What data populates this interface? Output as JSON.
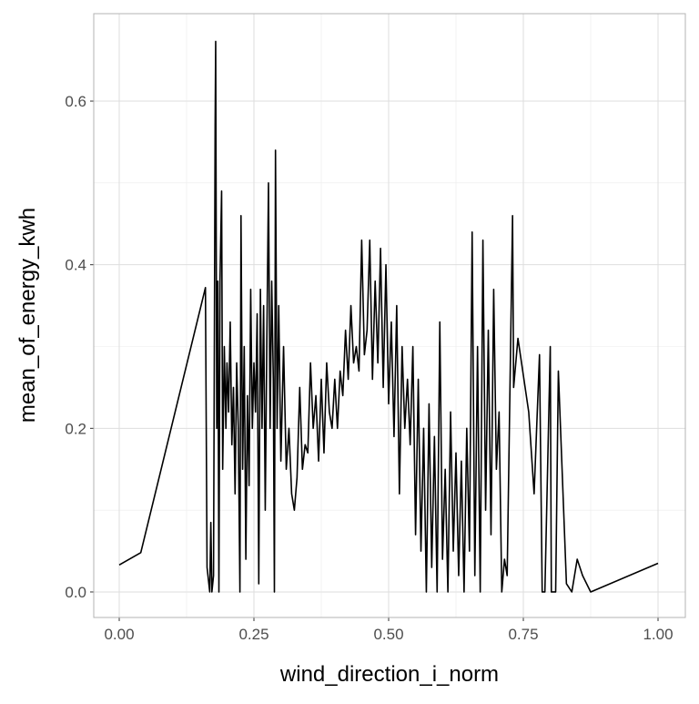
{
  "chart_data": {
    "type": "line",
    "x_label": "wind_direction_i_norm",
    "y_label": "mean_of_energy_kwh",
    "x": [
      0,
      0.04,
      0.16,
      0.163,
      0.168,
      0.17,
      0.172,
      0.175,
      0.178,
      0.179,
      0.181,
      0.183,
      0.185,
      0.187,
      0.19,
      0.192,
      0.195,
      0.198,
      0.2,
      0.203,
      0.206,
      0.209,
      0.212,
      0.215,
      0.218,
      0.221,
      0.224,
      0.226,
      0.229,
      0.232,
      0.235,
      0.238,
      0.241,
      0.244,
      0.247,
      0.25,
      0.253,
      0.256,
      0.259,
      0.262,
      0.265,
      0.268,
      0.271,
      0.274,
      0.277,
      0.28,
      0.283,
      0.286,
      0.288,
      0.29,
      0.293,
      0.296,
      0.3,
      0.305,
      0.31,
      0.315,
      0.32,
      0.325,
      0.33,
      0.335,
      0.34,
      0.345,
      0.35,
      0.355,
      0.36,
      0.365,
      0.37,
      0.375,
      0.38,
      0.385,
      0.39,
      0.395,
      0.4,
      0.405,
      0.41,
      0.415,
      0.42,
      0.425,
      0.43,
      0.435,
      0.44,
      0.445,
      0.45,
      0.455,
      0.46,
      0.465,
      0.47,
      0.475,
      0.48,
      0.485,
      0.49,
      0.495,
      0.5,
      0.505,
      0.51,
      0.515,
      0.52,
      0.525,
      0.53,
      0.535,
      0.54,
      0.545,
      0.55,
      0.555,
      0.56,
      0.565,
      0.57,
      0.575,
      0.58,
      0.585,
      0.59,
      0.595,
      0.6,
      0.605,
      0.61,
      0.615,
      0.62,
      0.625,
      0.63,
      0.635,
      0.64,
      0.645,
      0.65,
      0.655,
      0.66,
      0.665,
      0.67,
      0.675,
      0.68,
      0.685,
      0.69,
      0.695,
      0.7,
      0.705,
      0.71,
      0.715,
      0.72,
      0.73,
      0.732,
      0.74,
      0.76,
      0.77,
      0.78,
      0.785,
      0.79,
      0.8,
      0.802,
      0.81,
      0.815,
      0.83,
      0.84,
      0.85,
      0.86,
      0.875,
      1.0
    ],
    "series": [
      {
        "color": "#000000",
        "values": [
          0.033,
          0.048,
          0.372,
          0.03,
          0.0,
          0.085,
          0.0,
          0.02,
          0.57,
          0.673,
          0.2,
          0.38,
          0.0,
          0.38,
          0.49,
          0.15,
          0.3,
          0.2,
          0.28,
          0.22,
          0.33,
          0.18,
          0.25,
          0.12,
          0.28,
          0.2,
          0.0,
          0.46,
          0.15,
          0.3,
          0.04,
          0.24,
          0.13,
          0.37,
          0.2,
          0.28,
          0.22,
          0.34,
          0.01,
          0.37,
          0.2,
          0.35,
          0.1,
          0.31,
          0.5,
          0.2,
          0.38,
          0.26,
          0.0,
          0.54,
          0.2,
          0.35,
          0.16,
          0.3,
          0.15,
          0.2,
          0.12,
          0.1,
          0.14,
          0.25,
          0.15,
          0.18,
          0.17,
          0.28,
          0.2,
          0.24,
          0.16,
          0.26,
          0.17,
          0.28,
          0.22,
          0.2,
          0.26,
          0.2,
          0.27,
          0.24,
          0.32,
          0.26,
          0.35,
          0.28,
          0.3,
          0.27,
          0.43,
          0.29,
          0.32,
          0.43,
          0.26,
          0.38,
          0.28,
          0.42,
          0.25,
          0.4,
          0.23,
          0.33,
          0.19,
          0.35,
          0.12,
          0.3,
          0.2,
          0.26,
          0.18,
          0.3,
          0.07,
          0.26,
          0.05,
          0.2,
          0.0,
          0.23,
          0.03,
          0.19,
          0.0,
          0.33,
          0.04,
          0.15,
          0.0,
          0.22,
          0.05,
          0.17,
          0.02,
          0.16,
          0.0,
          0.2,
          0.05,
          0.44,
          0.02,
          0.3,
          0.0,
          0.43,
          0.1,
          0.32,
          0.07,
          0.37,
          0.15,
          0.22,
          0.0,
          0.04,
          0.02,
          0.46,
          0.25,
          0.31,
          0.22,
          0.12,
          0.29,
          0.0,
          0.0,
          0.3,
          0.0,
          0.0,
          0.27,
          0.01,
          0.0,
          0.04,
          0.02,
          0.0,
          0.035
        ]
      }
    ],
    "xlim": [
      -0.0473,
      1.0507
    ],
    "xticks": [
      {
        "value": 0,
        "label": "0.00"
      },
      {
        "value": 0.25,
        "label": "0.25"
      },
      {
        "value": 0.5,
        "label": "0.50"
      },
      {
        "value": 0.75,
        "label": "0.75"
      },
      {
        "value": 1,
        "label": "1.00"
      }
    ],
    "x_minor_ticks": [
      0.125,
      0.375,
      0.625,
      0.875
    ],
    "ylim": [
      -0.0312,
      0.7069
    ],
    "yticks": [
      {
        "value": 0,
        "label": "0.0"
      },
      {
        "value": 0.2,
        "label": "0.2"
      },
      {
        "value": 0.4,
        "label": "0.4"
      },
      {
        "value": 0.6,
        "label": "0.6"
      }
    ],
    "y_minor_ticks": [
      0.1,
      0.3,
      0.5
    ],
    "grid": true
  }
}
